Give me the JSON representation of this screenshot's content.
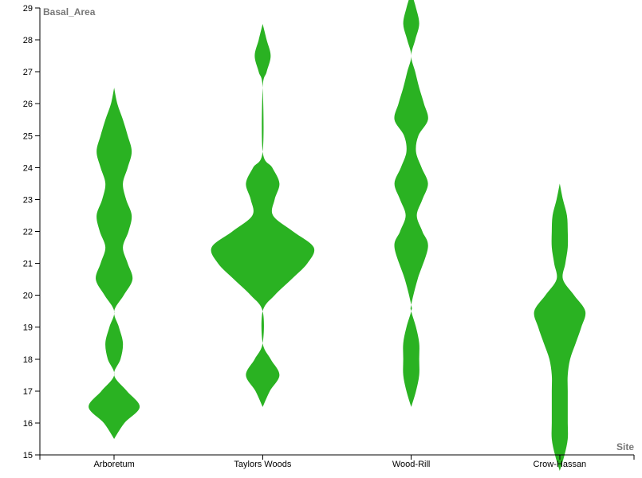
{
  "chart_data": {
    "type": "violin",
    "title": "",
    "xlabel": "Site",
    "ylabel": "Basal_Area",
    "ylim": [
      15,
      29
    ],
    "yticks": [
      15,
      16,
      17,
      18,
      19,
      20,
      21,
      22,
      23,
      24,
      25,
      26,
      27,
      28,
      29
    ],
    "categories": [
      "Arboretum",
      "Taylors Woods",
      "Wood-Rill",
      "Crow-Hassan"
    ],
    "fill_color": "#2ab222",
    "grid": false,
    "violins": [
      {
        "category": "Arboretum",
        "max_halfwidth": 32,
        "profile": [
          [
            15.5,
            0
          ],
          [
            16.0,
            13
          ],
          [
            16.5,
            32
          ],
          [
            17.0,
            16
          ],
          [
            17.5,
            0
          ],
          [
            18.0,
            8
          ],
          [
            18.5,
            11
          ],
          [
            19.0,
            6
          ],
          [
            19.5,
            0
          ],
          [
            20.0,
            12
          ],
          [
            20.5,
            23
          ],
          [
            21.0,
            17
          ],
          [
            21.5,
            11
          ],
          [
            22.0,
            18
          ],
          [
            22.5,
            22
          ],
          [
            23.0,
            15
          ],
          [
            23.5,
            11
          ],
          [
            24.0,
            17
          ],
          [
            24.5,
            22
          ],
          [
            25.0,
            17
          ],
          [
            25.5,
            11
          ],
          [
            26.0,
            4
          ],
          [
            26.5,
            0
          ]
        ]
      },
      {
        "category": "Taylors Woods",
        "max_halfwidth": 64,
        "profile": [
          [
            16.5,
            0
          ],
          [
            17.0,
            9
          ],
          [
            17.5,
            21
          ],
          [
            18.0,
            10
          ],
          [
            18.5,
            0
          ],
          [
            19.5,
            0
          ],
          [
            20.0,
            15
          ],
          [
            20.5,
            36
          ],
          [
            21.0,
            56
          ],
          [
            21.5,
            64
          ],
          [
            22.0,
            38
          ],
          [
            22.5,
            13
          ],
          [
            23.0,
            15
          ],
          [
            23.5,
            21
          ],
          [
            24.0,
            12
          ],
          [
            24.5,
            0
          ],
          [
            26.5,
            0
          ],
          [
            27.0,
            5
          ],
          [
            27.5,
            10
          ],
          [
            28.0,
            5
          ],
          [
            28.5,
            0
          ]
        ]
      },
      {
        "category": "Wood-Rill",
        "max_halfwidth": 21,
        "profile": [
          [
            16.5,
            0
          ],
          [
            17.0,
            6
          ],
          [
            17.5,
            10
          ],
          [
            18.0,
            10
          ],
          [
            18.5,
            10
          ],
          [
            19.0,
            6
          ],
          [
            19.5,
            0
          ],
          [
            19.7,
            0
          ],
          [
            20.5,
            8
          ],
          [
            21.5,
            21
          ],
          [
            22.0,
            14
          ],
          [
            22.5,
            7
          ],
          [
            23.0,
            14
          ],
          [
            23.5,
            21
          ],
          [
            24.0,
            13
          ],
          [
            24.5,
            6
          ],
          [
            25.0,
            9
          ],
          [
            25.5,
            21
          ],
          [
            26.0,
            16
          ],
          [
            26.5,
            10
          ],
          [
            27.0,
            5
          ],
          [
            27.5,
            0
          ],
          [
            28.0,
            5
          ],
          [
            28.5,
            10
          ],
          [
            29.0,
            6
          ],
          [
            29.5,
            0
          ]
        ]
      },
      {
        "category": "Crow-Hassan",
        "max_halfwidth": 32,
        "profile": [
          [
            14.5,
            0
          ],
          [
            15.0,
            6
          ],
          [
            15.5,
            10
          ],
          [
            16.0,
            10
          ],
          [
            16.5,
            10
          ],
          [
            17.0,
            10
          ],
          [
            17.5,
            10
          ],
          [
            18.0,
            13
          ],
          [
            18.5,
            20
          ],
          [
            19.0,
            27
          ],
          [
            19.5,
            32
          ],
          [
            20.0,
            18
          ],
          [
            20.5,
            4
          ],
          [
            21.0,
            7
          ],
          [
            21.5,
            10
          ],
          [
            22.0,
            10
          ],
          [
            22.5,
            9
          ],
          [
            23.0,
            4
          ],
          [
            23.5,
            0
          ]
        ]
      }
    ]
  }
}
